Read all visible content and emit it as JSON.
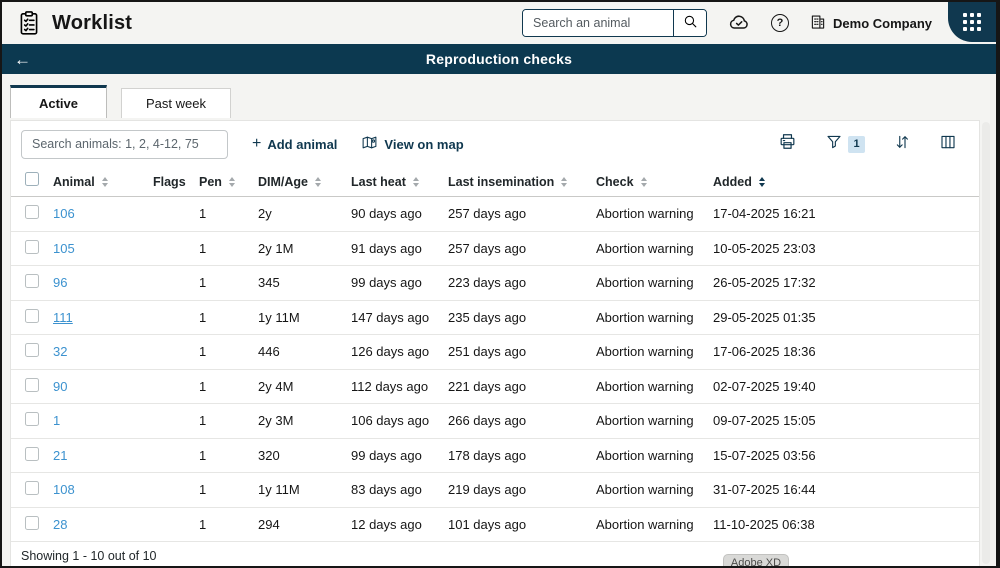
{
  "header": {
    "app_title": "Worklist",
    "search_placeholder": "Search an animal",
    "company": "Demo Company"
  },
  "title_bar": {
    "back_glyph": "←",
    "title": "Reproduction checks"
  },
  "tabs": [
    {
      "label": "Active",
      "active": true
    },
    {
      "label": "Past week",
      "active": false
    }
  ],
  "toolbar": {
    "search_placeholder": "Search animals: 1, 2, 4-12, 75",
    "plus_glyph": "+",
    "add_animal": "Add animal",
    "view_on_map": "View on map",
    "filter_count": "1",
    "help_glyph": "?"
  },
  "table": {
    "columns": [
      {
        "key": "animal",
        "label": "Animal",
        "sortable": true,
        "sort_active": false
      },
      {
        "key": "flags",
        "label": "Flags",
        "sortable": false,
        "sort_active": false
      },
      {
        "key": "pen",
        "label": "Pen",
        "sortable": true,
        "sort_active": false
      },
      {
        "key": "dim_age",
        "label": "DIM/Age",
        "sortable": true,
        "sort_active": false
      },
      {
        "key": "last_heat",
        "label": "Last heat",
        "sortable": true,
        "sort_active": false
      },
      {
        "key": "last_insemination",
        "label": "Last insemination",
        "sortable": true,
        "sort_active": false
      },
      {
        "key": "check",
        "label": "Check",
        "sortable": true,
        "sort_active": false
      },
      {
        "key": "added",
        "label": "Added",
        "sortable": true,
        "sort_active": true
      }
    ],
    "rows": [
      {
        "animal": "106",
        "flags": "",
        "pen": "1",
        "dim_age": "2y",
        "last_heat": "90 days ago",
        "last_insemination": "257 days ago",
        "check": "Abortion warning",
        "added": "17-04-2025 16:21",
        "underline": false
      },
      {
        "animal": "105",
        "flags": "",
        "pen": "1",
        "dim_age": "2y 1M",
        "last_heat": "91 days ago",
        "last_insemination": "257 days ago",
        "check": "Abortion warning",
        "added": "10-05-2025 23:03",
        "underline": false
      },
      {
        "animal": "96",
        "flags": "",
        "pen": "1",
        "dim_age": "345",
        "last_heat": "99 days ago",
        "last_insemination": "223 days ago",
        "check": "Abortion warning",
        "added": "26-05-2025 17:32",
        "underline": false
      },
      {
        "animal": "111",
        "flags": "",
        "pen": "1",
        "dim_age": "1y 11M",
        "last_heat": "147 days ago",
        "last_insemination": "235 days ago",
        "check": "Abortion warning",
        "added": "29-05-2025 01:35",
        "underline": true
      },
      {
        "animal": "32",
        "flags": "",
        "pen": "1",
        "dim_age": "446",
        "last_heat": "126 days ago",
        "last_insemination": "251 days ago",
        "check": "Abortion warning",
        "added": "17-06-2025 18:36",
        "underline": false
      },
      {
        "animal": "90",
        "flags": "",
        "pen": "1",
        "dim_age": "2y 4M",
        "last_heat": "112 days ago",
        "last_insemination": "221 days ago",
        "check": "Abortion warning",
        "added": "02-07-2025 19:40",
        "underline": false
      },
      {
        "animal": "1",
        "flags": "",
        "pen": "1",
        "dim_age": "2y 3M",
        "last_heat": "106 days ago",
        "last_insemination": "266 days ago",
        "check": "Abortion warning",
        "added": "09-07-2025 15:05",
        "underline": false
      },
      {
        "animal": "21",
        "flags": "",
        "pen": "1",
        "dim_age": "320",
        "last_heat": "99 days ago",
        "last_insemination": "178 days ago",
        "check": "Abortion warning",
        "added": "15-07-2025 03:56",
        "underline": false
      },
      {
        "animal": "108",
        "flags": "",
        "pen": "1",
        "dim_age": "1y 11M",
        "last_heat": "83 days ago",
        "last_insemination": "219 days ago",
        "check": "Abortion warning",
        "added": "31-07-2025 16:44",
        "underline": false
      },
      {
        "animal": "28",
        "flags": "",
        "pen": "1",
        "dim_age": "294",
        "last_heat": "12 days ago",
        "last_insemination": "101 days ago",
        "check": "Abortion warning",
        "added": "11-10-2025 06:38",
        "underline": false
      }
    ]
  },
  "footer": {
    "showing": "Showing 1 - 10 out of 10"
  },
  "overlay_badge": "Adobe XD",
  "colors": {
    "navy": "#10384f",
    "title_bar": "#0c3950",
    "link_blue": "#3c92cf",
    "filter_badge_bg": "#cfe3f1",
    "page_bg": "#f4f4f2"
  }
}
